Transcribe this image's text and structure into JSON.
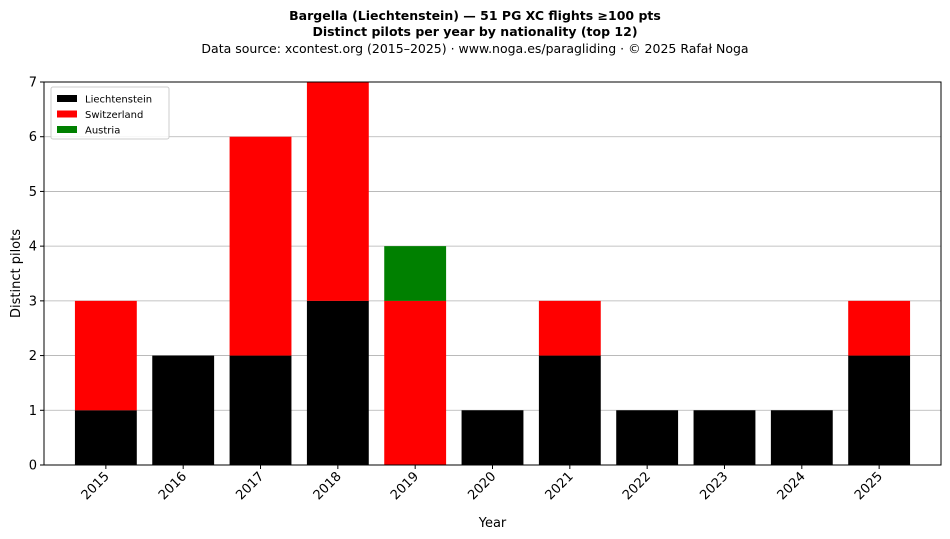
{
  "title": {
    "line1": "Bargella (Liechtenstein)  —  51 PG XC flights ≥100 pts",
    "line2": "Distinct pilots per year by nationality (top 12)",
    "line3": "Data source: xcontest.org (2015–2025)  ·  www.noga.es/paragliding  ·  © 2025 Rafał Noga"
  },
  "chart_data": {
    "type": "bar",
    "stacked": true,
    "categories": [
      "2015",
      "2016",
      "2017",
      "2018",
      "2019",
      "2020",
      "2021",
      "2022",
      "2023",
      "2024",
      "2025"
    ],
    "series": [
      {
        "name": "Liechtenstein",
        "color": "#000000",
        "values": [
          1,
          2,
          2,
          3,
          0,
          1,
          2,
          1,
          1,
          1,
          2
        ]
      },
      {
        "name": "Switzerland",
        "color": "#ff0000",
        "values": [
          2,
          0,
          4,
          4,
          3,
          0,
          1,
          0,
          0,
          0,
          1
        ]
      },
      {
        "name": "Austria",
        "color": "#008000",
        "values": [
          0,
          0,
          0,
          0,
          1,
          0,
          0,
          0,
          0,
          0,
          0
        ]
      }
    ],
    "xlabel": "Year",
    "ylabel": "Distinct pilots",
    "ylim": [
      0,
      7
    ],
    "yticks": [
      0,
      1,
      2,
      3,
      4,
      5,
      6,
      7
    ],
    "grid": "horizontal",
    "legend_position": "top-left"
  }
}
